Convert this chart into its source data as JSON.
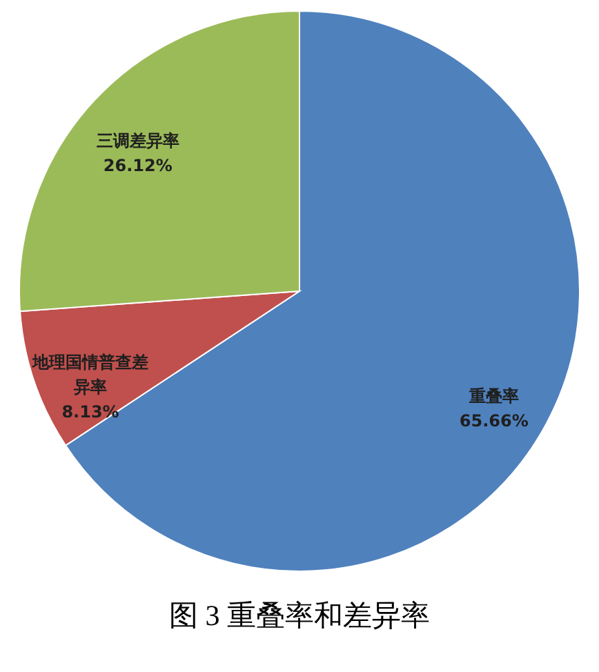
{
  "chart_data": {
    "type": "pie",
    "title": "图 3  重叠率和差异率",
    "categories": [
      "重叠率",
      "地理国情普查差异率",
      "三调差异率"
    ],
    "values": [
      65.66,
      8.13,
      26.12
    ],
    "colors": [
      "#4f81bd",
      "#c0504d",
      "#9bbb59"
    ],
    "value_labels": [
      "65.66%",
      "8.13%",
      "26.12%"
    ]
  }
}
